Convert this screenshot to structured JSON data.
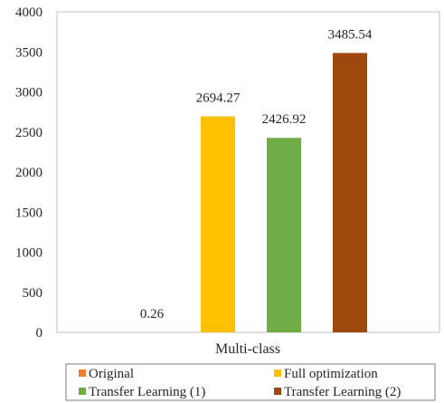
{
  "chart_data": {
    "type": "bar",
    "categories": [
      "Multi-class"
    ],
    "series": [
      {
        "name": "Original",
        "values": [
          0.26
        ],
        "color": "#ED7D31",
        "label": "0.26"
      },
      {
        "name": "Full optimization",
        "values": [
          2694.27
        ],
        "color": "#FFC000",
        "label": "2694.27"
      },
      {
        "name": "Transfer Learning (1)",
        "values": [
          2426.92
        ],
        "color": "#70AD47",
        "label": "2426.92"
      },
      {
        "name": "Transfer Learning (2)",
        "values": [
          3485.54
        ],
        "color": "#9E480E",
        "label": "3485.54"
      }
    ],
    "yticks": [
      "0",
      "500",
      "1000",
      "1500",
      "2000",
      "2500",
      "3000",
      "3500",
      "4000"
    ],
    "ylim": [
      0,
      4000
    ],
    "grid": false,
    "legend": "bottom"
  }
}
